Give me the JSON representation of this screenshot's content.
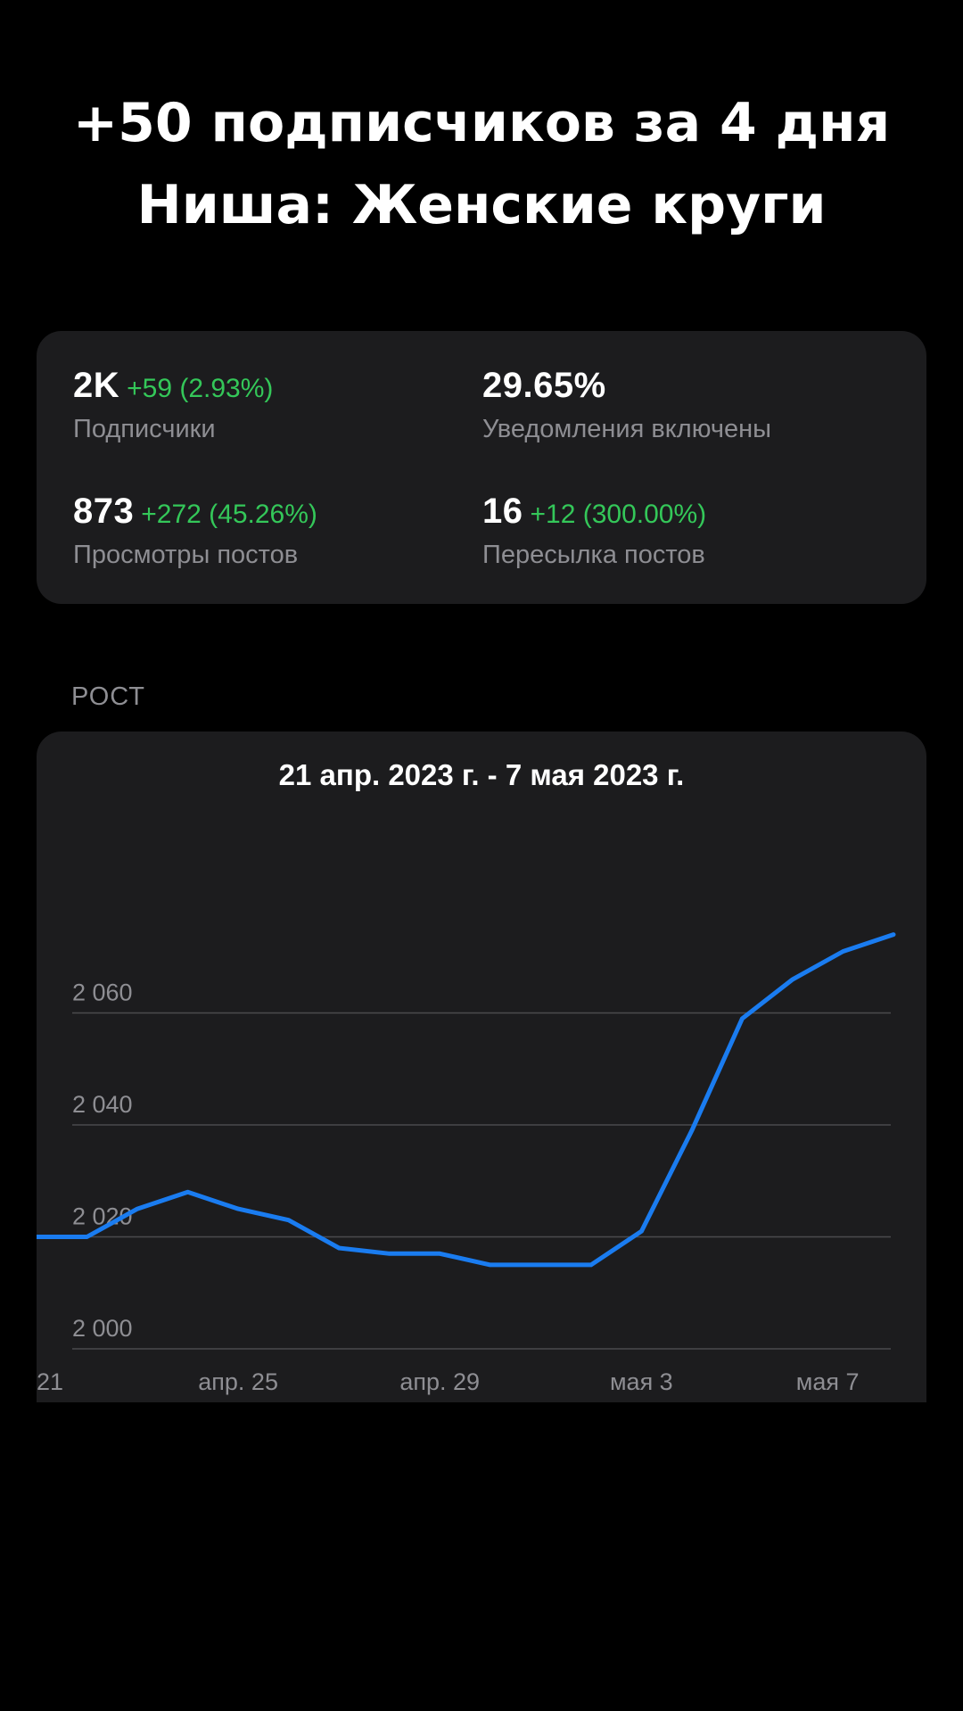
{
  "headline": {
    "line1": "+50 подписчиков за 4 дня",
    "line2": "Ниша: Женские круги"
  },
  "stats": {
    "subscribers": {
      "value": "2K",
      "delta": "+59 (2.93%)",
      "label": "Подписчики"
    },
    "notifications": {
      "value": "29.65%",
      "label": "Уведомления включены"
    },
    "views": {
      "value": "873",
      "delta": "+272 (45.26%)",
      "label": "Просмотры постов"
    },
    "shares": {
      "value": "16",
      "delta": "+12 (300.00%)",
      "label": "Пересылка постов"
    }
  },
  "section": {
    "title": "РОСТ"
  },
  "colors": {
    "background": "#000000",
    "card": "#1c1c1e",
    "positive": "#34c759",
    "muted": "#8e8e93",
    "line": "#1a7cf0",
    "grid": "#4a4a4d"
  },
  "chart_data": {
    "type": "line",
    "title": "21 апр. 2023 г. - 7 мая 2023 г.",
    "x": [
      "2023-04-21",
      "2023-04-22",
      "2023-04-23",
      "2023-04-24",
      "2023-04-25",
      "2023-04-26",
      "2023-04-27",
      "2023-04-28",
      "2023-04-29",
      "2023-04-30",
      "2023-05-01",
      "2023-05-02",
      "2023-05-03",
      "2023-05-04",
      "2023-05-05",
      "2023-05-06",
      "2023-05-07",
      "2023-05-08"
    ],
    "series": [
      {
        "values": [
          2020,
          2020,
          2025,
          2028,
          2025,
          2023,
          2018,
          2017,
          2017,
          2015,
          2015,
          2015,
          2021,
          2039,
          2059,
          2066,
          2071,
          2074
        ]
      }
    ],
    "ylim": [
      2000,
      2080
    ],
    "yticks": [
      2000,
      2020,
      2040,
      2060
    ],
    "ytick_labels": [
      "2 000",
      "2 020",
      "2 040",
      "2 060"
    ],
    "xtick_labels": [
      {
        "x": "2023-04-21",
        "label": "21"
      },
      {
        "x": "2023-04-25",
        "label": "апр. 25"
      },
      {
        "x": "2023-04-29",
        "label": "апр. 29"
      },
      {
        "x": "2023-05-03",
        "label": "мая 3"
      },
      {
        "x": "2023-05-07",
        "label": "мая 7"
      }
    ],
    "grid": true,
    "legend": "none"
  }
}
